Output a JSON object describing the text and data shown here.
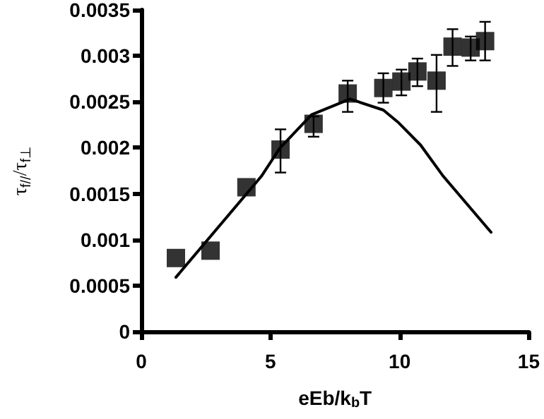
{
  "chart_data": {
    "type": "scatter",
    "xlabel": "eEb/k$_{b}$T",
    "ylabel": "τ$_{f//}$/τ$_{f⊥}$",
    "xlim": [
      0,
      15
    ],
    "xticks": [
      0,
      5,
      10,
      15
    ],
    "ylim": [
      0,
      0.0035
    ],
    "yticks": [
      0,
      0.0005,
      0.001,
      0.0015,
      0.002,
      0.0025,
      0.003,
      0.0035
    ],
    "grid": false,
    "series": [
      {
        "marker": "square",
        "color": "#000000",
        "x": [
          1.34,
          2.68,
          4.07,
          5.39,
          6.67,
          7.99,
          9.37,
          10.07,
          10.69,
          11.43,
          12.05,
          12.75,
          13.31
        ],
        "values": [
          0.0008,
          0.00088,
          0.00157,
          0.00198,
          0.00226,
          0.00259,
          0.00265,
          0.00272,
          0.00283,
          0.00273,
          0.0031,
          0.00309,
          0.00316
        ],
        "errors": [
          null,
          null,
          null,
          [
            0.00173,
            0.0022
          ],
          [
            0.00212,
            0.00234
          ],
          [
            0.00239,
            0.00273
          ],
          [
            0.00249,
            0.00281
          ],
          [
            0.00257,
            0.00285
          ],
          [
            0.00267,
            0.00297
          ],
          [
            0.00239,
            0.00301
          ],
          [
            0.00289,
            0.00329
          ],
          [
            0.00295,
            0.00321
          ],
          [
            0.00295,
            0.00337
          ]
        ]
      },
      {
        "type": "line",
        "marker": "none",
        "line_style": "solid",
        "color": "#000000",
        "x": [
          1.34,
          4.65,
          5.35,
          6.59,
          8.08,
          9.37,
          9.93,
          10.81,
          11.69,
          13.54
        ],
        "values": [
          0.00059,
          0.00169,
          0.00199,
          0.00236,
          0.00253,
          0.00241,
          0.00228,
          0.00203,
          0.00169,
          0.00108
        ]
      }
    ]
  }
}
